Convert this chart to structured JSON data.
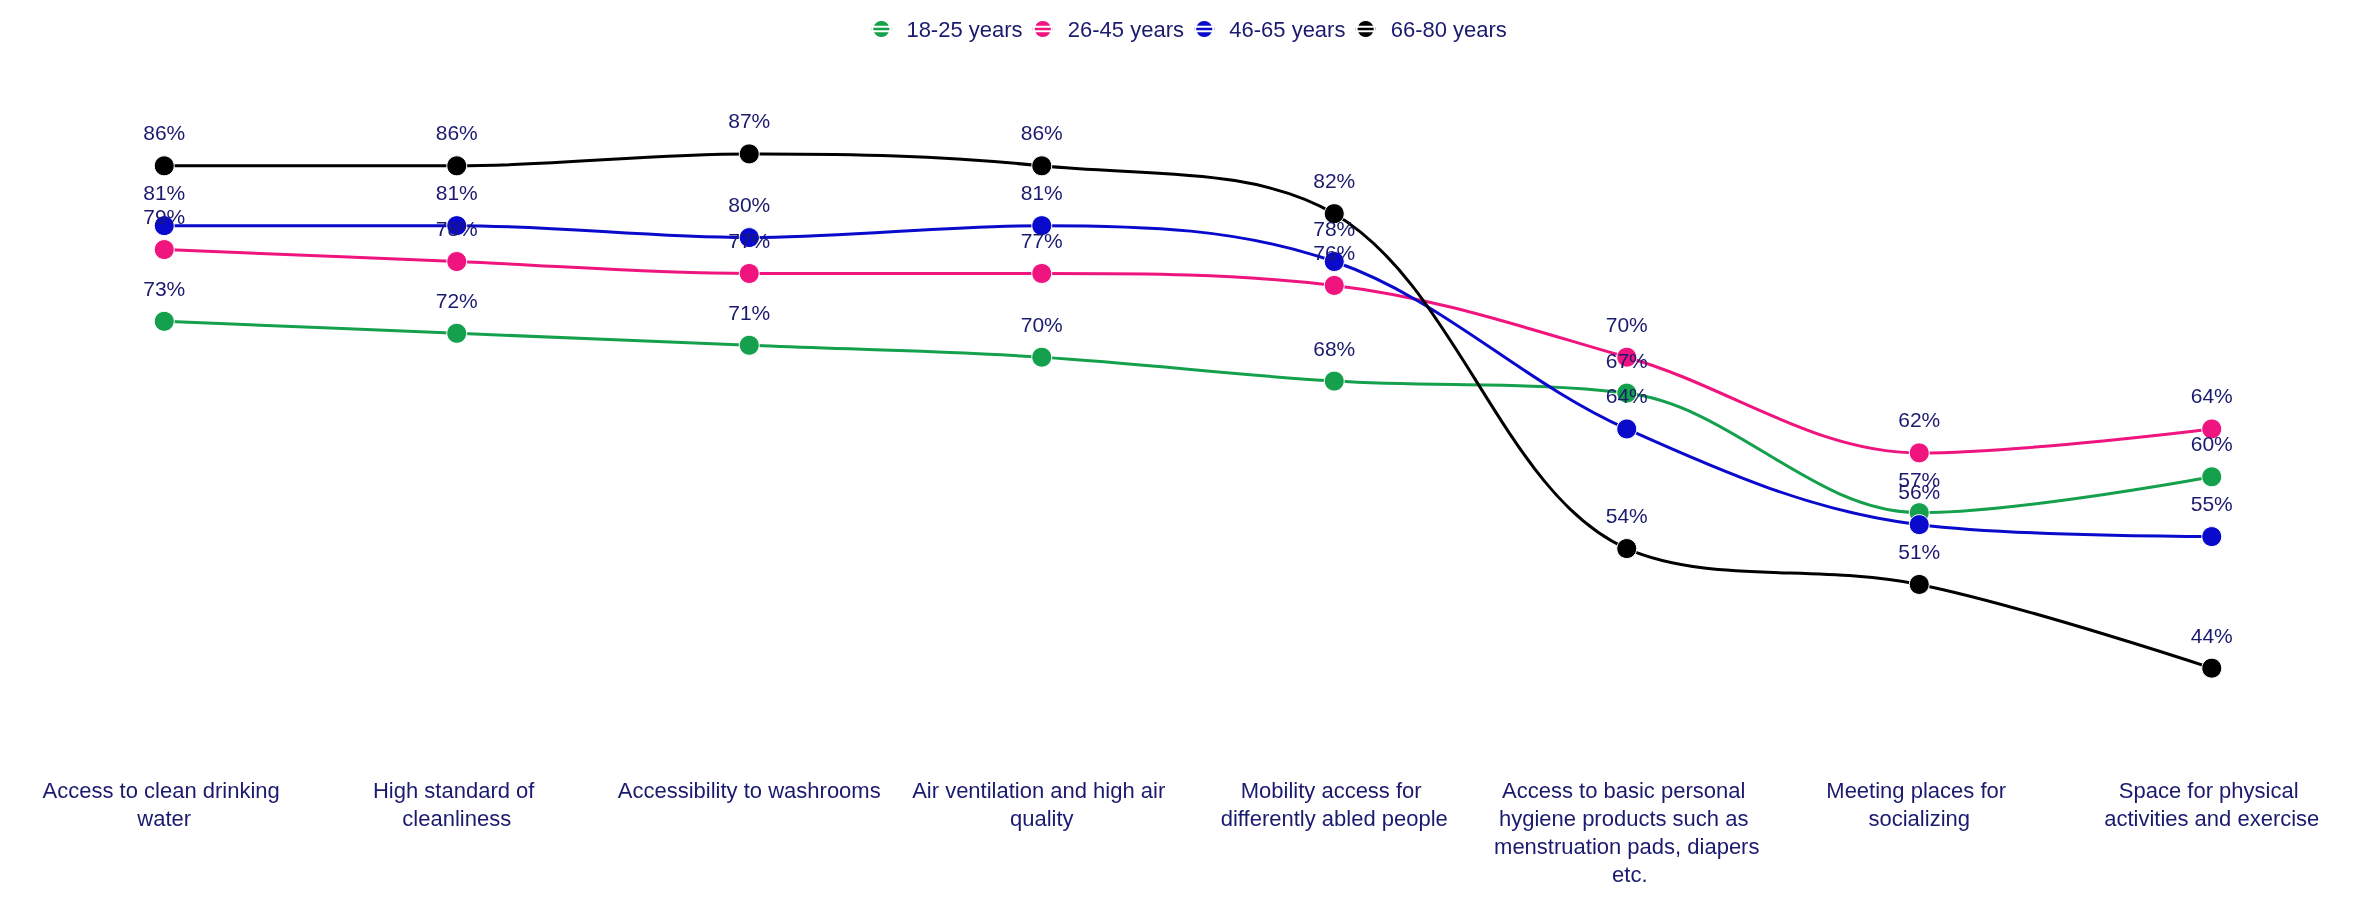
{
  "chart_data": {
    "type": "line",
    "categories": [
      "Access to clean drinking water",
      "High standard of cleanliness",
      "Accessibility to washrooms",
      "Air ventilation and high air quality",
      "Mobility access for differently abled people",
      "Access to basic personal hygiene products such as menstruation pads, diapers etc.",
      "Meeting places for socializing",
      "Space for physical activities and exercise"
    ],
    "series": [
      {
        "name": "18-25 years",
        "color": "#14a04c",
        "values": [
          73,
          72,
          71,
          70,
          68,
          67,
          57,
          60
        ],
        "value_labels": [
          "73%",
          "72%",
          "71%",
          "70%",
          "68%",
          "67%",
          "57%",
          "60%"
        ]
      },
      {
        "name": "26-45 years",
        "color": "#f0147f",
        "values": [
          79,
          78,
          77,
          77,
          76,
          70,
          62,
          64
        ],
        "value_labels": [
          "79%",
          "78%",
          "77%",
          "77%",
          "76%",
          "70%",
          "62%",
          "64%"
        ]
      },
      {
        "name": "46-65 years",
        "color": "#0a0acc",
        "values": [
          81,
          81,
          80,
          81,
          78,
          64,
          56,
          55
        ],
        "value_labels": [
          "81%",
          "81%",
          "80%",
          "81%",
          "78%",
          "64%",
          "56%",
          "55%"
        ]
      },
      {
        "name": "66-80 years",
        "color": "#000000",
        "values": [
          86,
          86,
          87,
          86,
          82,
          54,
          51,
          44
        ],
        "value_labels": [
          "86%",
          "86%",
          "87%",
          "86%",
          "82%",
          "54%",
          "51%",
          "44%"
        ]
      }
    ],
    "legend": "top",
    "marker": "circle",
    "line_style": "solid",
    "grid": false
  }
}
